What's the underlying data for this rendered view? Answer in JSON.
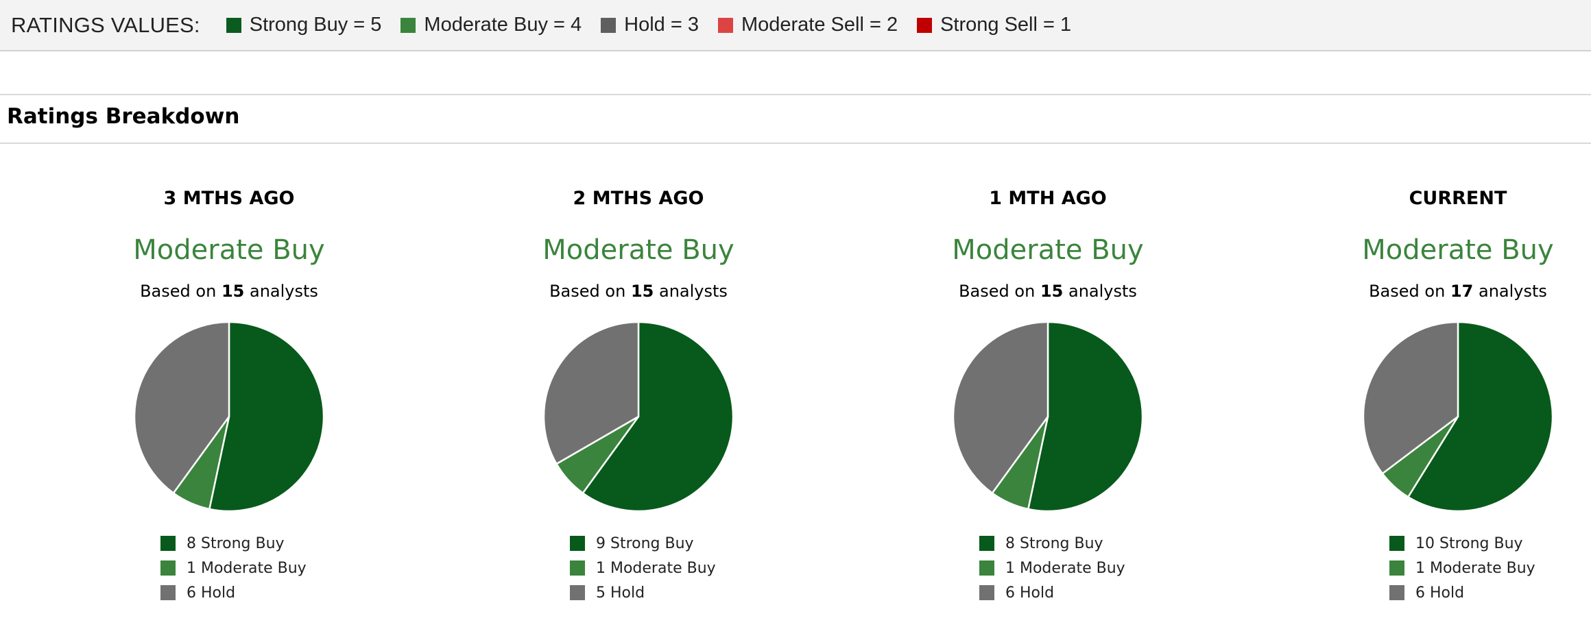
{
  "header": {
    "title": "RATINGS VALUES:",
    "legend": [
      {
        "label": "Strong Buy = 5",
        "color": "#0a5c1e"
      },
      {
        "label": "Moderate Buy = 4",
        "color": "#3b843d"
      },
      {
        "label": "Hold = 3",
        "color": "#5f5f5f"
      },
      {
        "label": "Moderate Sell = 2",
        "color": "#dc4444"
      },
      {
        "label": "Strong Sell = 1",
        "color": "#c00000"
      }
    ]
  },
  "section": {
    "title": "Ratings Breakdown"
  },
  "colors": {
    "strong_buy": "#075a1b",
    "moderate_buy": "#3b843d",
    "hold": "#717171",
    "consensus": "#3b843d"
  },
  "chart_data": [
    {
      "type": "pie",
      "title": "3 MTHS AGO",
      "consensus": "Moderate Buy",
      "based_on_prefix": "Based on",
      "analysts": "15",
      "based_on_suffix": "analysts",
      "categories": [
        "Strong Buy",
        "Moderate Buy",
        "Hold"
      ],
      "values": [
        8,
        1,
        6
      ],
      "legend": [
        "8 Strong Buy",
        "1 Moderate Buy",
        "6 Hold"
      ]
    },
    {
      "type": "pie",
      "title": "2 MTHS AGO",
      "consensus": "Moderate Buy",
      "based_on_prefix": "Based on",
      "analysts": "15",
      "based_on_suffix": "analysts",
      "categories": [
        "Strong Buy",
        "Moderate Buy",
        "Hold"
      ],
      "values": [
        9,
        1,
        5
      ],
      "legend": [
        "9 Strong Buy",
        "1 Moderate Buy",
        "5 Hold"
      ]
    },
    {
      "type": "pie",
      "title": "1 MTH AGO",
      "consensus": "Moderate Buy",
      "based_on_prefix": "Based on",
      "analysts": "15",
      "based_on_suffix": "analysts",
      "categories": [
        "Strong Buy",
        "Moderate Buy",
        "Hold"
      ],
      "values": [
        8,
        1,
        6
      ],
      "legend": [
        "8 Strong Buy",
        "1 Moderate Buy",
        "6 Hold"
      ]
    },
    {
      "type": "pie",
      "title": "CURRENT",
      "consensus": "Moderate Buy",
      "based_on_prefix": "Based on",
      "analysts": "17",
      "based_on_suffix": "analysts",
      "categories": [
        "Strong Buy",
        "Moderate Buy",
        "Hold"
      ],
      "values": [
        10,
        1,
        6
      ],
      "legend": [
        "10 Strong Buy",
        "1 Moderate Buy",
        "6 Hold"
      ]
    }
  ]
}
